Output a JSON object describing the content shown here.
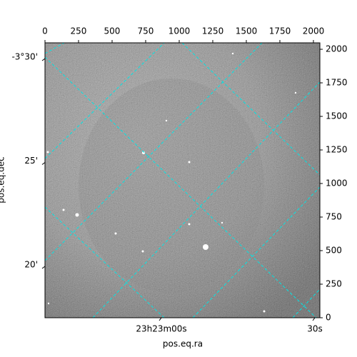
{
  "chart_data": {
    "type": "image",
    "xlabel": "pos.eq.ra",
    "ylabel": "pos.eq.dec",
    "xlim": [
      0,
      2048
    ],
    "ylim": [
      0,
      2048
    ],
    "xticks": [
      0,
      250,
      500,
      750,
      1000,
      1250,
      1500,
      1750,
      2000
    ],
    "yticks": [
      0,
      250,
      500,
      750,
      1000,
      1250,
      1500,
      1750,
      2000
    ],
    "ra_ticks": [
      {
        "value": 350.75,
        "label": "23h23m00s"
      },
      {
        "value": 350.875,
        "label": "30s"
      }
    ],
    "dec_ticks": [
      {
        "value": -3.5,
        "label": "-3°30'"
      },
      {
        "value": -3.41667,
        "label": "25'"
      },
      {
        "value": -3.33333,
        "label": "20'"
      }
    ],
    "grid_color": "#00e5e5",
    "cmap": "gray"
  }
}
